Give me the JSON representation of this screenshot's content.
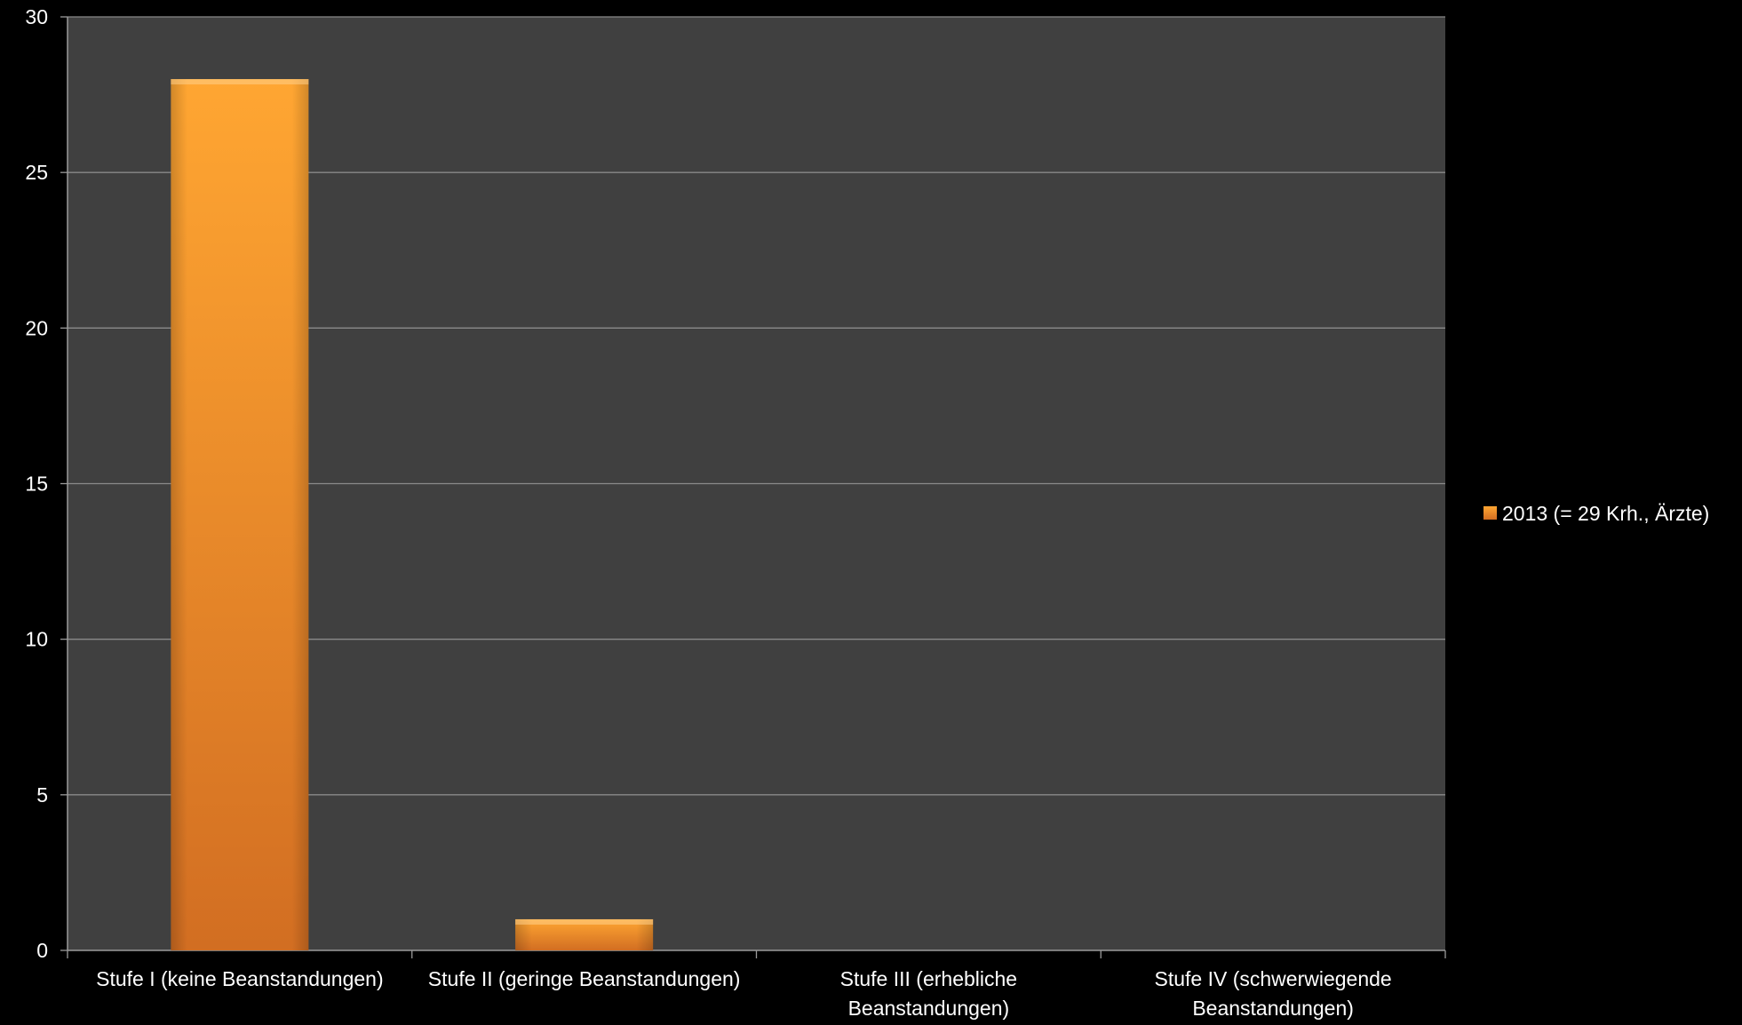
{
  "chart_data": {
    "type": "bar",
    "categories": [
      "Stufe I (keine Beanstandungen)",
      "Stufe II (geringe Beanstandungen)",
      "Stufe III (erhebliche Beanstandungen)",
      "Stufe IV (schwerwiegende Beanstandungen)"
    ],
    "category_lines": [
      [
        "Stufe I (keine Beanstandungen)"
      ],
      [
        "Stufe II (geringe Beanstandungen)"
      ],
      [
        "Stufe III (erhebliche",
        "Beanstandungen)"
      ],
      [
        "Stufe IV (schwerwiegende",
        "Beanstandungen)"
      ]
    ],
    "series": [
      {
        "name": "2013 (= 29 Krh., Ärzte)",
        "values": [
          28,
          1,
          0,
          0
        ]
      }
    ],
    "ylim": [
      0,
      30
    ],
    "yticks": [
      0,
      5,
      10,
      15,
      20,
      25,
      30
    ],
    "grid": true,
    "legend_position": "right",
    "title": "",
    "xlabel": "",
    "ylabel": "",
    "colors": {
      "page_background": "#000000",
      "plot_background": "#404040",
      "gridline": "#8a8a8a",
      "bar_top": "#ffa632",
      "bar_bottom": "#d26e22",
      "text": "#ffffff"
    }
  }
}
